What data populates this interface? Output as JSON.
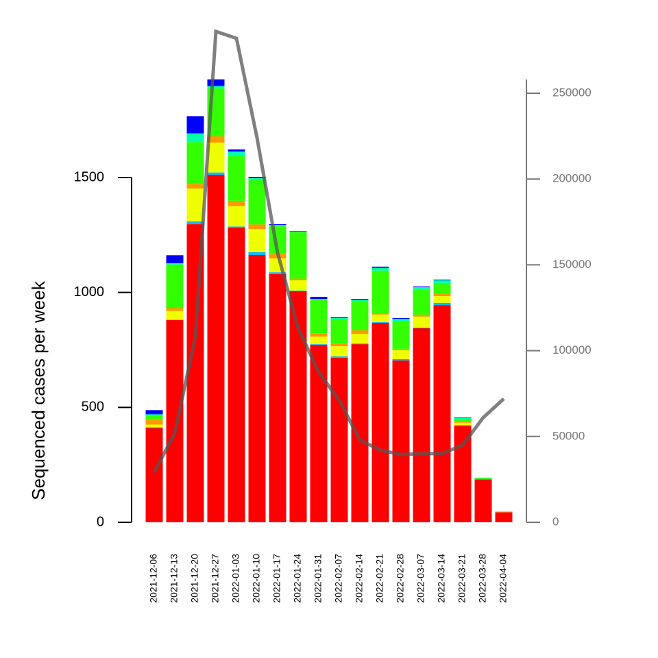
{
  "chart_data": {
    "type": "bar",
    "stacked": true,
    "ylabel": "Sequenced cases per week",
    "categories": [
      "2021-12-06",
      "2021-12-13",
      "2021-12-20",
      "2021-12-27",
      "2022-01-03",
      "2022-01-10",
      "2022-01-17",
      "2022-01-24",
      "2022-01-31",
      "2022-02-07",
      "2022-02-14",
      "2022-02-21",
      "2022-02-28",
      "2022-03-07",
      "2022-03-14",
      "2022-03-21",
      "2022-03-28",
      "2022-04-04"
    ],
    "ylim": [
      0,
      1500
    ],
    "yticks": [
      0,
      500,
      1000,
      1500
    ],
    "y2lim": [
      0,
      258000
    ],
    "y2ticks": [
      0,
      50000,
      100000,
      150000,
      200000,
      250000
    ],
    "series": [
      {
        "color": "#ff0000",
        "values": [
          410,
          880,
          1297,
          1512,
          1282,
          1163,
          1080,
          1005,
          772,
          716,
          775,
          868,
          704,
          844,
          945,
          420,
          186,
          44
        ]
      },
      {
        "color": "#1ab2ff",
        "values": [
          3,
          2,
          12,
          10,
          5,
          12,
          8,
          3,
          3,
          6,
          3,
          3,
          6,
          3,
          10,
          3,
          2,
          0
        ]
      },
      {
        "color": "#eeff00",
        "values": [
          12,
          38,
          143,
          130,
          88,
          101,
          60,
          45,
          33,
          44,
          42,
          33,
          39,
          48,
          29,
          10,
          0,
          1
        ]
      },
      {
        "color": "#ff9900",
        "values": [
          20,
          12,
          20,
          27,
          24,
          20,
          20,
          7,
          14,
          12,
          15,
          6,
          6,
          8,
          12,
          5,
          0,
          2
        ]
      },
      {
        "color": "#33ff00",
        "values": [
          20,
          190,
          182,
          209,
          194,
          192,
          120,
          202,
          147,
          105,
          125,
          185,
          120,
          110,
          45,
          12,
          4,
          0
        ]
      },
      {
        "color": "#00ffaa",
        "values": [
          5,
          5,
          38,
          10,
          20,
          10,
          6,
          3,
          3,
          6,
          8,
          12,
          10,
          10,
          12,
          4,
          2,
          0
        ]
      },
      {
        "color": "#0000ff",
        "values": [
          18,
          35,
          75,
          29,
          9,
          5,
          3,
          2,
          9,
          3,
          4,
          5,
          4,
          3,
          3,
          2,
          0,
          0
        ]
      },
      {
        "type": "line",
        "axis": "y2",
        "color": "#555555",
        "values": [
          29000,
          52000,
          108000,
          286000,
          282000,
          224000,
          157000,
          113000,
          87500,
          71000,
          48000,
          42000,
          39500,
          40000,
          40000,
          45000,
          61000,
          72000
        ]
      }
    ]
  }
}
